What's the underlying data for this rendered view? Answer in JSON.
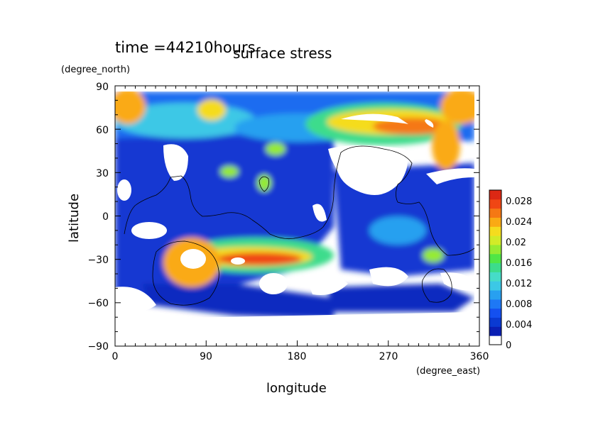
{
  "chart_data": {
    "type": "heatmap",
    "time_label": "time =44210hours",
    "title": "surface stress",
    "xlabel": "longitude",
    "ylabel": "latitude",
    "x_unit": "(degree_east)",
    "y_unit": "(degree_north)",
    "xlim": [
      0,
      360
    ],
    "ylim": [
      -90,
      90
    ],
    "x_ticks": [
      "0",
      "90",
      "180",
      "270",
      "360"
    ],
    "y_ticks": [
      "90",
      "60",
      "30",
      "0",
      "−30",
      "−60",
      "−90"
    ],
    "colorbar": {
      "ticks": [
        "0",
        "0.004",
        "0.008",
        "0.012",
        "0.016",
        "0.02",
        "0.024",
        "0.028"
      ],
      "range": [
        0,
        0.03
      ],
      "colors": [
        "#ffffff",
        "#0a1fb4",
        "#0a3ad2",
        "#1450f0",
        "#1e78f5",
        "#28a0f0",
        "#3cc8e6",
        "#46dcc8",
        "#3cdc8c",
        "#50e646",
        "#96eb32",
        "#d2eb28",
        "#f5dc1e",
        "#faaa14",
        "#f57814",
        "#f04614",
        "#dc2814"
      ]
    },
    "grid": false,
    "fields": [
      {
        "lon": 30,
        "lat": 82,
        "value": 0.02
      },
      {
        "lon": 90,
        "lat": 82,
        "value": 0.02
      },
      {
        "lon": 150,
        "lat": 80,
        "value": 0.01
      },
      {
        "lon": 240,
        "lat": 80,
        "value": 0.008
      },
      {
        "lon": 345,
        "lat": 78,
        "value": 0.024
      },
      {
        "lon": 40,
        "lat": 65,
        "value": 0.008
      },
      {
        "lon": 280,
        "lat": 68,
        "value": 0.022
      },
      {
        "lon": 320,
        "lat": 62,
        "value": 0.026
      },
      {
        "lon": 335,
        "lat": 45,
        "value": 0.024
      },
      {
        "lon": 155,
        "lat": 45,
        "value": 0.014
      },
      {
        "lon": 145,
        "lat": 25,
        "value": 0.014
      },
      {
        "lon": 120,
        "lat": 30,
        "value": 0.012
      },
      {
        "lon": 70,
        "lat": -35,
        "value": 0.03
      },
      {
        "lon": 120,
        "lat": -30,
        "value": 0.022
      },
      {
        "lon": 170,
        "lat": -30,
        "value": 0.02
      },
      {
        "lon": 330,
        "lat": -25,
        "value": 0.012
      },
      {
        "lon": 270,
        "lat": 20,
        "value": 0.004
      },
      {
        "lon": 180,
        "lat": -60,
        "value": 0.004
      }
    ]
  }
}
